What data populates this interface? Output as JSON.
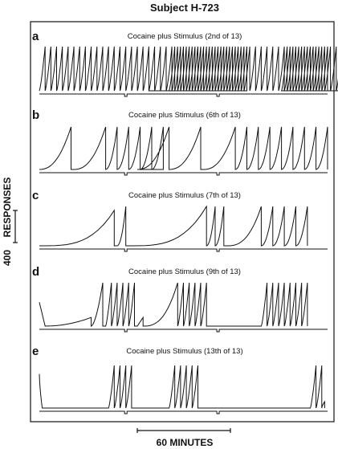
{
  "figure": {
    "title": "Subject H-723",
    "y_scale_label": [
      "400",
      "RESPONSES"
    ],
    "x_scale_label": "60 MINUTES"
  },
  "chart_data": [
    {
      "type": "line",
      "panel": "a",
      "title": "Cocaine plus Stimulus (2nd of 13)",
      "series": [
        {
          "description": "cumulative responses, pen resets every 400 responses",
          "segments": [
            [
              0,
              0,
              36,
              400,
              2,
              4
            ],
            [
              38,
              0,
              2,
              400,
              2,
              4
            ],
            [
              45,
              0,
              36,
              400,
              2,
              4
            ],
            [
              84,
              0,
              8,
              400,
              2,
              4
            ]
          ]
        }
      ],
      "events": [
        30,
        62
      ]
    },
    {
      "type": "line",
      "panel": "b",
      "title": "Cocaine plus Stimulus (6th of 13)",
      "series": [
        {
          "segments": [
            [
              0,
              0,
              1,
              400,
              11,
              7
            ],
            [
              12,
              0,
              1,
              400,
              11,
              7
            ],
            [
              23,
              0,
              5,
              400,
              4,
              6
            ],
            [
              34,
              0,
              1,
              400,
              11,
              7
            ],
            [
              45,
              0,
              1,
              400,
              11,
              7
            ],
            [
              57,
              0,
              1,
              400,
              11,
              7
            ],
            [
              68,
              0,
              8,
              400,
              4,
              6
            ]
          ]
        }
      ],
      "events": [
        30,
        62
      ]
    },
    {
      "type": "line",
      "panel": "c",
      "title": "Cocaine plus Stimulus (7th of 13)",
      "series": [
        {
          "segments": [
            [
              0,
              0,
              1,
              360,
              26,
              10
            ],
            [
              27,
              0,
              1,
              400,
              3,
              6
            ],
            [
              31,
              0,
              1,
              400,
              27,
              10
            ],
            [
              58,
              0,
              2,
              400,
              3,
              6
            ],
            [
              65,
              0,
              1,
              400,
              12,
              8
            ],
            [
              77,
              0,
              4,
              400,
              4,
              6
            ]
          ]
        }
      ],
      "events": [
        30,
        62
      ]
    },
    {
      "type": "line",
      "panel": "d",
      "title": "Cocaine plus Stimulus (9th of 13)",
      "series": [
        {
          "segments": [
            [
              0,
              220,
              1,
              0,
              2,
              3
            ],
            [
              2,
              0,
              1,
              80,
              16,
              6
            ],
            [
              18,
              0,
              1,
              400,
              4,
              5
            ],
            [
              23,
              0,
              5,
              400,
              2,
              4
            ],
            [
              34,
              0,
              1,
              80,
              2,
              3
            ],
            [
              36,
              0,
              1,
              400,
              12,
              8
            ],
            [
              48,
              0,
              5,
              400,
              2,
              4
            ],
            [
              60,
              0,
              1,
              0,
              17,
              2
            ],
            [
              77,
              0,
              8,
              400,
              2,
              4
            ]
          ]
        }
      ],
      "events": [
        30,
        62
      ]
    },
    {
      "type": "line",
      "panel": "e",
      "title": "Cocaine plus Stimulus (13th of 13)",
      "series": [
        {
          "segments": [
            [
              0,
              320,
              1,
              0,
              1,
              2
            ],
            [
              1,
              0,
              1,
              0,
              23,
              2
            ],
            [
              24,
              0,
              4,
              400,
              2,
              4
            ],
            [
              32,
              0,
              1,
              0,
              13,
              2
            ],
            [
              45,
              0,
              5,
              400,
              2,
              4
            ],
            [
              56,
              0,
              1,
              0,
              38,
              2
            ],
            [
              94,
              0,
              2,
              400,
              2,
              4
            ],
            [
              98,
              0,
              1,
              60,
              1,
              2
            ]
          ]
        }
      ],
      "events": [
        30,
        62
      ]
    }
  ]
}
